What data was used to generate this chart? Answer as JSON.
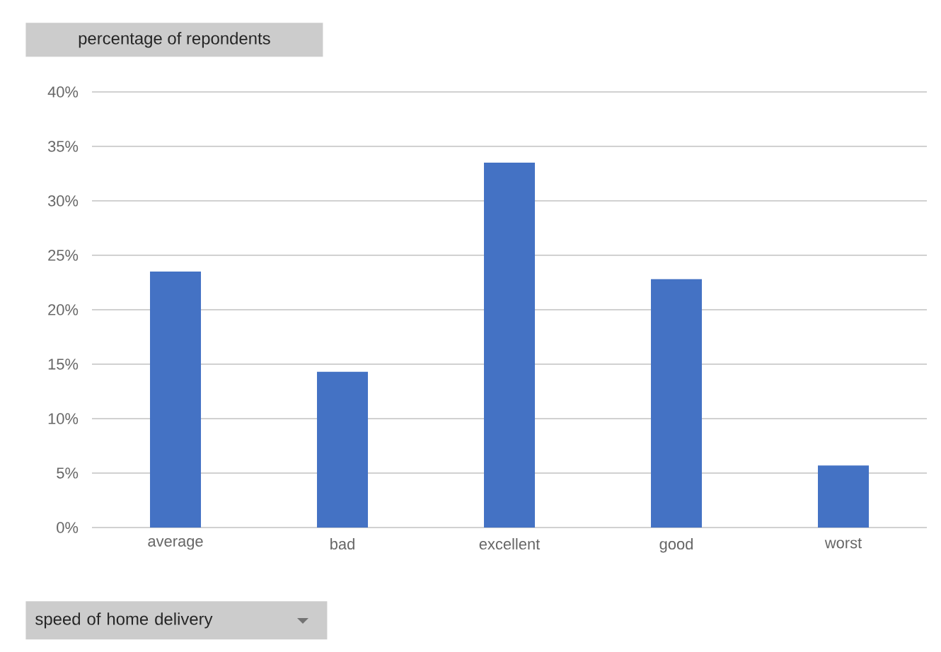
{
  "chart_data": {
    "type": "bar",
    "ylabel": "percentage of repondents",
    "xlabel": "speed of home delivery",
    "categories": [
      "average",
      "bad",
      "excellent",
      "good",
      "worst"
    ],
    "values": [
      23.5,
      14.3,
      33.5,
      22.8,
      5.7
    ],
    "color": "#4472c4",
    "ylim": [
      0,
      40
    ],
    "yticks": [
      {
        "value": 0,
        "label": "0%"
      },
      {
        "value": 5,
        "label": "5%"
      },
      {
        "value": 10,
        "label": "10%"
      },
      {
        "value": 15,
        "label": "15%"
      },
      {
        "value": 20,
        "label": "20%"
      },
      {
        "value": 25,
        "label": "25%"
      },
      {
        "value": 30,
        "label": "30%"
      },
      {
        "value": 35,
        "label": "35%"
      },
      {
        "value": 40,
        "label": "40%"
      }
    ],
    "grid": "y"
  }
}
